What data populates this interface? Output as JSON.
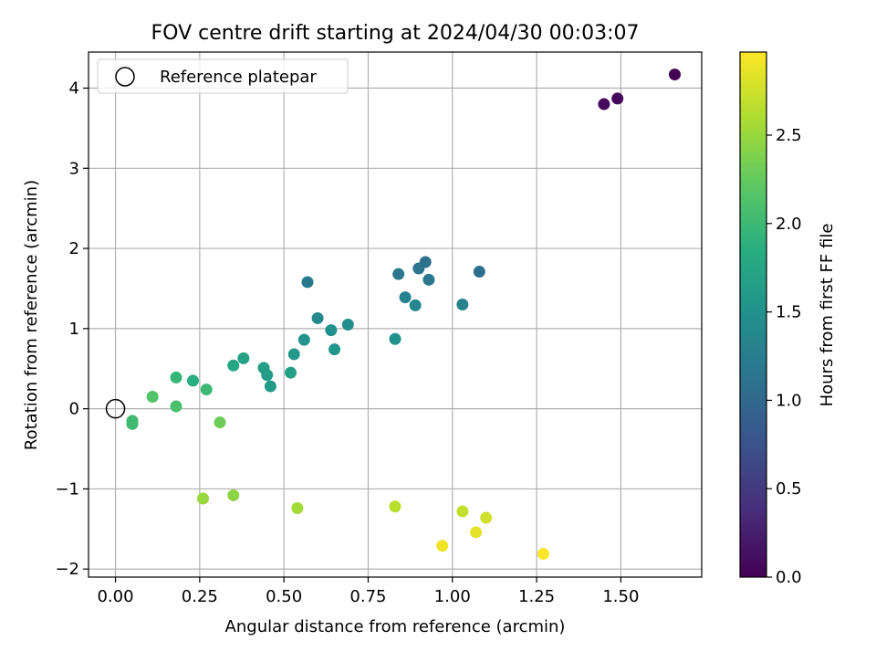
{
  "chart_data": {
    "type": "scatter",
    "title": "FOV centre drift starting at 2024/04/30 00:03:07",
    "xlabel": "Angular distance from reference (arcmin)",
    "ylabel": "Rotation from reference (arcmin)",
    "xlim": [
      -0.08,
      1.74
    ],
    "ylim": [
      -2.1,
      4.45
    ],
    "xticks": [
      0.0,
      0.25,
      0.5,
      0.75,
      1.0,
      1.25,
      1.5
    ],
    "xtick_labels": [
      "0.00",
      "0.25",
      "0.50",
      "0.75",
      "1.00",
      "1.25",
      "1.50"
    ],
    "yticks": [
      -2,
      -1,
      0,
      1,
      2,
      3,
      4
    ],
    "ytick_labels": [
      "−2",
      "−1",
      "0",
      "1",
      "2",
      "3",
      "4"
    ],
    "grid": true,
    "legend": {
      "location": "upper-left",
      "entries": [
        {
          "label": "Reference platepar",
          "marker": "open-circle"
        }
      ]
    },
    "reference_point": {
      "x": 0.0,
      "y": 0.0
    },
    "colorbar": {
      "label": "Hours from first FF file",
      "range": [
        0.0,
        2.97
      ],
      "ticks": [
        0.0,
        0.5,
        1.0,
        1.5,
        2.0,
        2.5
      ],
      "tick_labels": [
        "0.0",
        "0.5",
        "1.0",
        "1.5",
        "2.0",
        "2.5"
      ],
      "colormap": "viridis"
    },
    "points": [
      {
        "x": 1.66,
        "y": 4.17,
        "c": 0.0
      },
      {
        "x": 1.49,
        "y": 3.87,
        "c": 0.05
      },
      {
        "x": 1.45,
        "y": 3.8,
        "c": 0.08
      },
      {
        "x": 1.08,
        "y": 1.71,
        "c": 1.08
      },
      {
        "x": 0.92,
        "y": 1.83,
        "c": 1.1
      },
      {
        "x": 0.9,
        "y": 1.75,
        "c": 1.12
      },
      {
        "x": 0.84,
        "y": 1.68,
        "c": 1.15
      },
      {
        "x": 0.93,
        "y": 1.61,
        "c": 1.17
      },
      {
        "x": 0.57,
        "y": 1.58,
        "c": 1.2
      },
      {
        "x": 0.86,
        "y": 1.39,
        "c": 1.3
      },
      {
        "x": 1.03,
        "y": 1.3,
        "c": 1.32
      },
      {
        "x": 0.89,
        "y": 1.29,
        "c": 1.35
      },
      {
        "x": 0.6,
        "y": 1.13,
        "c": 1.4
      },
      {
        "x": 0.69,
        "y": 1.05,
        "c": 1.45
      },
      {
        "x": 0.64,
        "y": 0.98,
        "c": 1.48
      },
      {
        "x": 0.83,
        "y": 0.87,
        "c": 1.5
      },
      {
        "x": 0.56,
        "y": 0.86,
        "c": 1.52
      },
      {
        "x": 0.65,
        "y": 0.74,
        "c": 1.55
      },
      {
        "x": 0.53,
        "y": 0.68,
        "c": 1.58
      },
      {
        "x": 0.38,
        "y": 0.63,
        "c": 1.7
      },
      {
        "x": 0.35,
        "y": 0.54,
        "c": 1.75
      },
      {
        "x": 0.44,
        "y": 0.51,
        "c": 1.65
      },
      {
        "x": 0.52,
        "y": 0.45,
        "c": 1.68
      },
      {
        "x": 0.45,
        "y": 0.42,
        "c": 1.62
      },
      {
        "x": 0.46,
        "y": 0.28,
        "c": 1.6
      },
      {
        "x": 0.18,
        "y": 0.39,
        "c": 1.95
      },
      {
        "x": 0.23,
        "y": 0.35,
        "c": 1.85
      },
      {
        "x": 0.27,
        "y": 0.24,
        "c": 2.0
      },
      {
        "x": 0.11,
        "y": 0.15,
        "c": 2.15
      },
      {
        "x": 0.18,
        "y": 0.03,
        "c": 2.1
      },
      {
        "x": 0.05,
        "y": -0.15,
        "c": 2.05
      },
      {
        "x": 0.05,
        "y": -0.19,
        "c": 2.02
      },
      {
        "x": 0.31,
        "y": -0.17,
        "c": 2.3
      },
      {
        "x": 0.26,
        "y": -1.12,
        "c": 2.5
      },
      {
        "x": 0.35,
        "y": -1.08,
        "c": 2.45
      },
      {
        "x": 0.54,
        "y": -1.24,
        "c": 2.55
      },
      {
        "x": 0.83,
        "y": -1.22,
        "c": 2.65
      },
      {
        "x": 1.03,
        "y": -1.28,
        "c": 2.7
      },
      {
        "x": 1.1,
        "y": -1.36,
        "c": 2.75
      },
      {
        "x": 1.07,
        "y": -1.54,
        "c": 2.85
      },
      {
        "x": 0.97,
        "y": -1.71,
        "c": 2.9
      },
      {
        "x": 1.27,
        "y": -1.81,
        "c": 2.95
      }
    ]
  }
}
